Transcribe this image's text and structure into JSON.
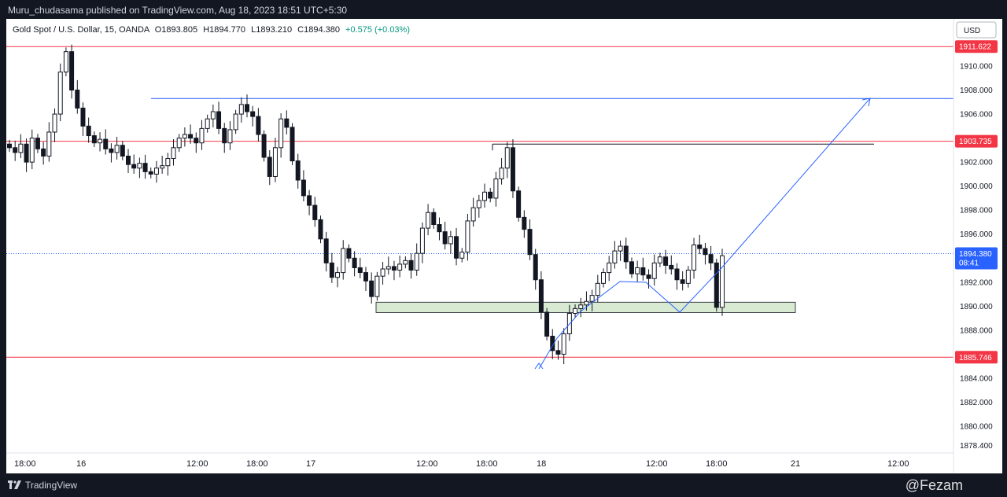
{
  "header": {
    "publish_line": "Muru_chudasama published on TradingView.com, Aug 18, 2023 18:51 UTC+5:30"
  },
  "legend": {
    "symbol": "Gold Spot / U.S. Dollar, 15, OANDA",
    "open": "O1893.805",
    "high": "H1894.770",
    "low": "L1893.210",
    "close": "C1894.380",
    "change": "+0.575 (+0.03%)"
  },
  "currency": "USD",
  "footer": {
    "brand": "TradingView",
    "watermark": "@Fezam"
  },
  "colors": {
    "background": "#131722",
    "panel": "#ffffff",
    "up": "#131722",
    "resistance_line": "#f23645",
    "trend_line": "#2962ff",
    "zone_fill": "#d9ead3",
    "price_tag": "#2962ff"
  },
  "chart_data": {
    "type": "candlestick",
    "title": "",
    "ylim": [
      1878.4,
      1913.0
    ],
    "y_ticks": [
      "1910.000",
      "1908.000",
      "1906.000",
      "1902.000",
      "1900.000",
      "1898.000",
      "1896.000",
      "1892.000",
      "1890.000",
      "1888.000",
      "1884.000",
      "1882.000",
      "1880.000",
      "1878.400"
    ],
    "x_ticks": [
      "18:00",
      "16",
      "12:00",
      "18:00",
      "17",
      "12:00",
      "18:00",
      "18",
      "12:00",
      "18:00",
      "21",
      "12:00"
    ],
    "price_levels": [
      {
        "label": "1911.622",
        "value": 1911.622,
        "color": "#f23645"
      },
      {
        "label": "1903.735",
        "value": 1903.735,
        "color": "#f23645"
      },
      {
        "label": "1885.746",
        "value": 1885.746,
        "color": "#f23645"
      }
    ],
    "current_price": {
      "label": "1894.380",
      "countdown": "08:41",
      "value": 1894.38
    },
    "horizontal_lines": [
      {
        "value": 1907.3,
        "color": "#2962ff"
      },
      {
        "value": 1903.5,
        "color": "#131722"
      }
    ],
    "support_zone": {
      "low": 1889.6,
      "high": 1890.2
    },
    "series": [
      {
        "name": "",
        "values": [
          1903.2,
          1902.8,
          1903.5,
          1902.0,
          1904.0,
          1903.1,
          1902.5,
          1904.5,
          1906.0,
          1909.5,
          1911.2,
          1908.0,
          1906.5,
          1905.0,
          1904.2,
          1903.6,
          1903.9,
          1903.1,
          1902.8,
          1903.4,
          1902.5,
          1901.8,
          1901.5,
          1901.9,
          1901.2,
          1901.0,
          1901.5,
          1901.7,
          1902.3,
          1903.2,
          1904.0,
          1904.3,
          1904.0,
          1903.6,
          1904.8,
          1905.6,
          1906.2,
          1904.8,
          1903.6,
          1904.7,
          1906.0,
          1906.8,
          1906.2,
          1905.8,
          1904.3,
          1902.4,
          1900.8,
          1903.2,
          1905.6,
          1904.9,
          1902.1,
          1900.5,
          1899.2,
          1898.4,
          1897.2,
          1895.6,
          1893.6,
          1892.4,
          1892.8,
          1894.8,
          1894.0,
          1893.2,
          1892.8,
          1892.1,
          1890.8,
          1892.5,
          1893.1,
          1893.3,
          1893.0,
          1893.5,
          1893.8,
          1893.0,
          1894.4,
          1896.5,
          1897.8,
          1896.8,
          1896.2,
          1895.2,
          1895.8,
          1894.0,
          1894.5,
          1897.1,
          1898.2,
          1898.8,
          1899.5,
          1899.0,
          1900.6,
          1901.5,
          1903.2,
          1899.6,
          1897.4,
          1896.4,
          1894.3,
          1892.2,
          1889.5,
          1887.5,
          1886.3,
          1886.0,
          1887.7,
          1889.4,
          1889.8,
          1890.1,
          1890.4,
          1890.9,
          1891.9,
          1892.8,
          1893.6,
          1894.6,
          1895.0,
          1893.7,
          1892.7,
          1893.2,
          1892.6,
          1892.3,
          1893.6,
          1894.1,
          1893.4,
          1893.1,
          1892.2,
          1891.9,
          1893.0,
          1895.1,
          1894.8,
          1894.3,
          1893.6,
          1889.9,
          1894.2
        ]
      }
    ]
  }
}
